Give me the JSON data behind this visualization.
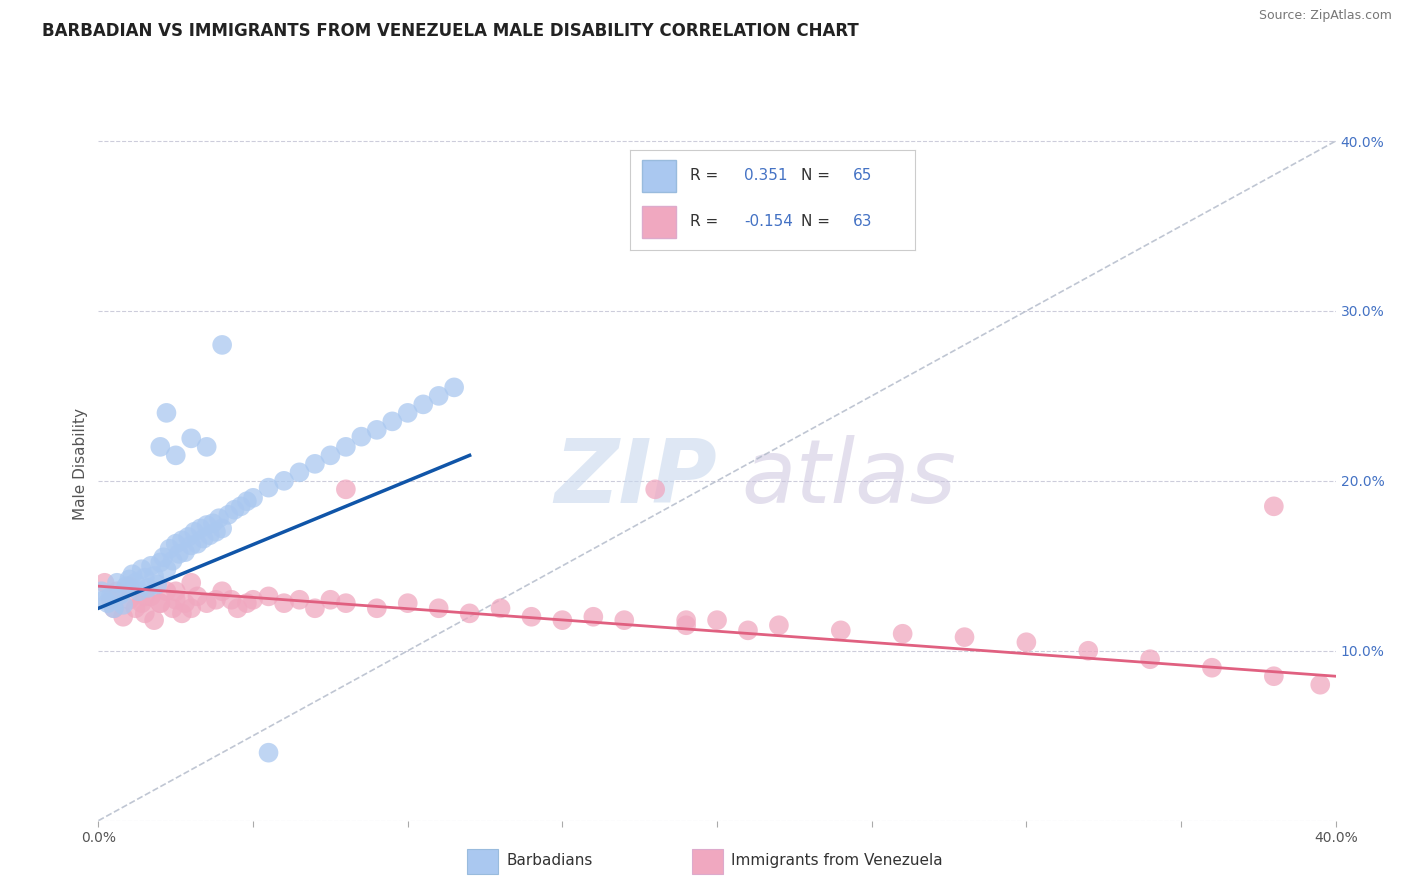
{
  "title": "BARBADIAN VS IMMIGRANTS FROM VENEZUELA MALE DISABILITY CORRELATION CHART",
  "source": "Source: ZipAtlas.com",
  "ylabel": "Male Disability",
  "xlim": [
    0.0,
    0.4
  ],
  "ylim": [
    0.0,
    0.42
  ],
  "legend_R1": "0.351",
  "legend_N1": "65",
  "legend_R2": "-0.154",
  "legend_N2": "63",
  "color_barbadian": "#aac8f0",
  "color_venezuela": "#f0a8c0",
  "color_line_barbadian": "#1055a8",
  "color_line_venezuela": "#e06080",
  "color_diagonal": "#b0b8c8",
  "background_color": "#ffffff",
  "grid_color": "#c8c8d8",
  "barbadian_x": [
    0.001,
    0.002,
    0.003,
    0.004,
    0.005,
    0.006,
    0.007,
    0.008,
    0.009,
    0.01,
    0.011,
    0.012,
    0.013,
    0.014,
    0.015,
    0.016,
    0.017,
    0.018,
    0.019,
    0.02,
    0.021,
    0.022,
    0.023,
    0.024,
    0.025,
    0.026,
    0.027,
    0.028,
    0.029,
    0.03,
    0.031,
    0.032,
    0.033,
    0.034,
    0.035,
    0.036,
    0.037,
    0.038,
    0.039,
    0.04,
    0.042,
    0.044,
    0.046,
    0.048,
    0.05,
    0.055,
    0.06,
    0.065,
    0.07,
    0.075,
    0.08,
    0.085,
    0.09,
    0.095,
    0.1,
    0.105,
    0.11,
    0.115,
    0.02,
    0.025,
    0.03,
    0.035,
    0.04,
    0.022,
    0.055
  ],
  "barbadian_y": [
    0.135,
    0.13,
    0.128,
    0.132,
    0.125,
    0.14,
    0.133,
    0.127,
    0.138,
    0.142,
    0.145,
    0.14,
    0.135,
    0.148,
    0.143,
    0.137,
    0.15,
    0.144,
    0.139,
    0.152,
    0.155,
    0.148,
    0.16,
    0.153,
    0.163,
    0.157,
    0.165,
    0.158,
    0.167,
    0.162,
    0.17,
    0.163,
    0.172,
    0.166,
    0.174,
    0.168,
    0.175,
    0.17,
    0.178,
    0.172,
    0.18,
    0.183,
    0.185,
    0.188,
    0.19,
    0.196,
    0.2,
    0.205,
    0.21,
    0.215,
    0.22,
    0.226,
    0.23,
    0.235,
    0.24,
    0.245,
    0.25,
    0.255,
    0.22,
    0.215,
    0.225,
    0.22,
    0.28,
    0.24,
    0.04
  ],
  "venezuela_x": [
    0.002,
    0.004,
    0.005,
    0.006,
    0.008,
    0.01,
    0.012,
    0.014,
    0.015,
    0.017,
    0.018,
    0.02,
    0.022,
    0.024,
    0.025,
    0.027,
    0.028,
    0.03,
    0.032,
    0.035,
    0.038,
    0.04,
    0.043,
    0.045,
    0.048,
    0.05,
    0.055,
    0.06,
    0.065,
    0.07,
    0.075,
    0.08,
    0.09,
    0.1,
    0.11,
    0.12,
    0.13,
    0.14,
    0.15,
    0.16,
    0.17,
    0.18,
    0.19,
    0.2,
    0.21,
    0.22,
    0.24,
    0.26,
    0.28,
    0.3,
    0.32,
    0.34,
    0.36,
    0.38,
    0.395,
    0.01,
    0.015,
    0.02,
    0.025,
    0.03,
    0.08,
    0.19,
    0.38
  ],
  "venezuela_y": [
    0.14,
    0.13,
    0.125,
    0.135,
    0.12,
    0.13,
    0.125,
    0.128,
    0.122,
    0.132,
    0.118,
    0.128,
    0.135,
    0.125,
    0.13,
    0.122,
    0.128,
    0.125,
    0.132,
    0.128,
    0.13,
    0.135,
    0.13,
    0.125,
    0.128,
    0.13,
    0.132,
    0.128,
    0.13,
    0.125,
    0.13,
    0.128,
    0.125,
    0.128,
    0.125,
    0.122,
    0.125,
    0.12,
    0.118,
    0.12,
    0.118,
    0.195,
    0.115,
    0.118,
    0.112,
    0.115,
    0.112,
    0.11,
    0.108,
    0.105,
    0.1,
    0.095,
    0.09,
    0.085,
    0.08,
    0.138,
    0.132,
    0.128,
    0.135,
    0.14,
    0.195,
    0.118,
    0.185
  ],
  "blue_line_x": [
    0.0,
    0.12
  ],
  "blue_line_y": [
    0.125,
    0.215
  ],
  "pink_line_x": [
    0.0,
    0.4
  ],
  "pink_line_y": [
    0.138,
    0.085
  ]
}
